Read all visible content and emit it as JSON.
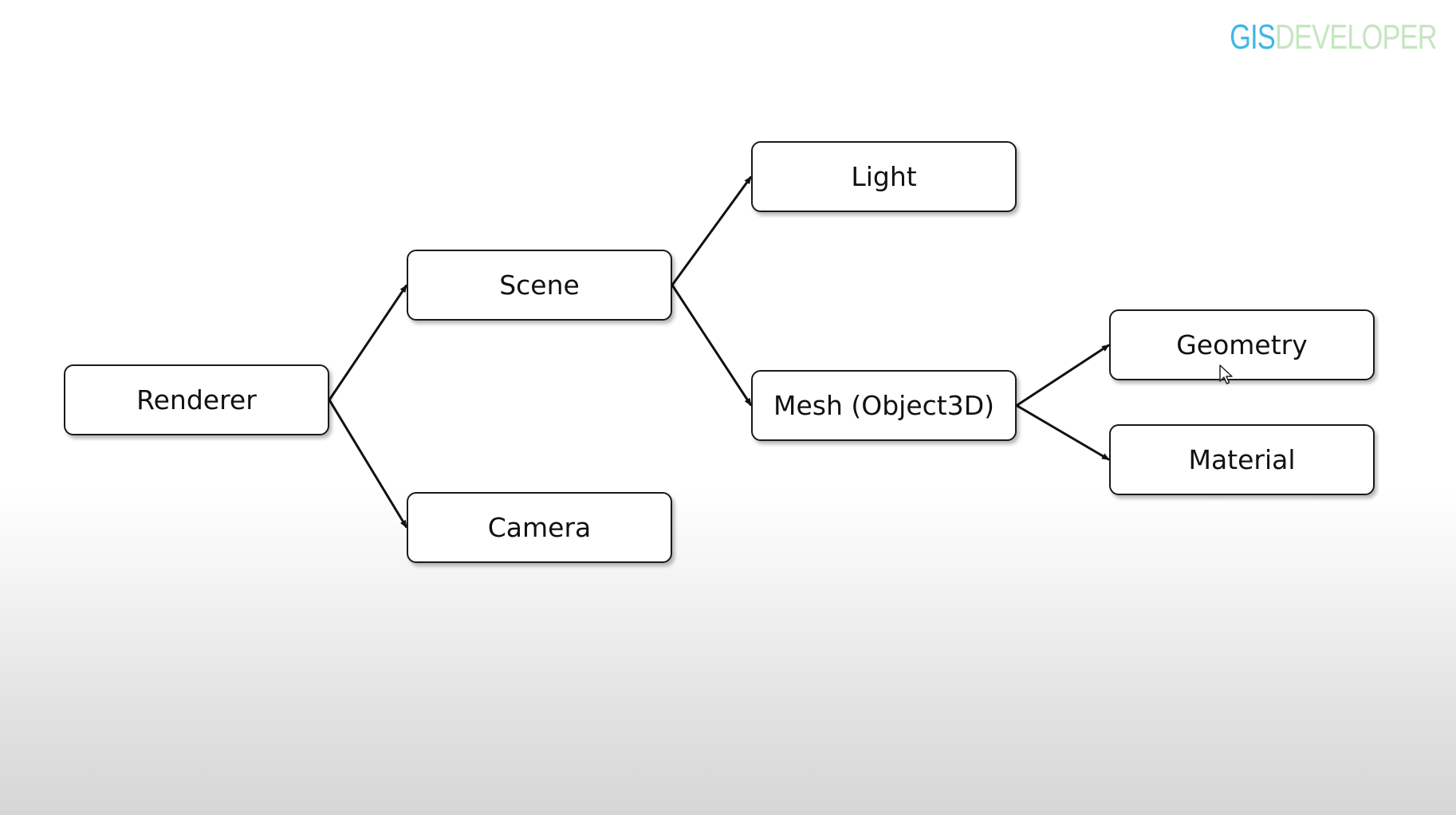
{
  "logo": {
    "part1": "GIS",
    "part2": "DEVELOPER",
    "color1": "#3fb6e6",
    "color2": "#c5e6c0"
  },
  "nodes": {
    "renderer": "Renderer",
    "scene": "Scene",
    "camera": "Camera",
    "light": "Light",
    "mesh": "Mesh (Object3D)",
    "geometry": "Geometry",
    "material": "Material"
  },
  "edges": [
    {
      "from": "renderer",
      "to": "scene"
    },
    {
      "from": "renderer",
      "to": "camera"
    },
    {
      "from": "scene",
      "to": "light"
    },
    {
      "from": "scene",
      "to": "mesh"
    },
    {
      "from": "mesh",
      "to": "geometry"
    },
    {
      "from": "mesh",
      "to": "material"
    }
  ],
  "colors": {
    "stroke": "#111111",
    "node_fill": "#ffffff"
  },
  "cursor": "mouse-pointer-icon"
}
